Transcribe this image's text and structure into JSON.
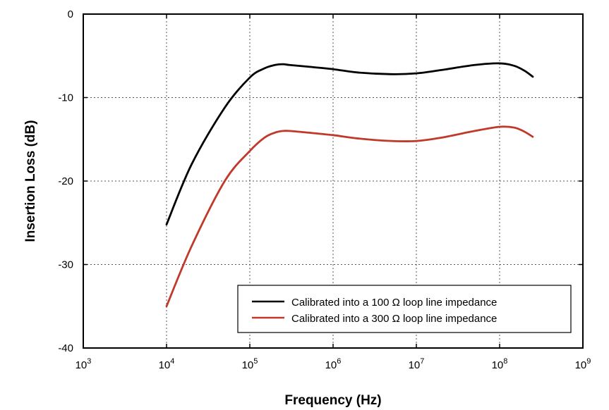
{
  "chart_data": {
    "type": "line",
    "title": "",
    "xlabel": "Frequency (Hz)",
    "ylabel": "Insertion Loss (dB)",
    "x_scale": "log",
    "xlim": [
      1000,
      1000000000
    ],
    "ylim": [
      -40,
      0
    ],
    "grid": true,
    "legend_placement": "bottom-right",
    "x_ticks": [
      {
        "base": "10",
        "exp": "3",
        "value": 1000
      },
      {
        "base": "10",
        "exp": "4",
        "value": 10000
      },
      {
        "base": "10",
        "exp": "5",
        "value": 100000
      },
      {
        "base": "10",
        "exp": "6",
        "value": 1000000
      },
      {
        "base": "10",
        "exp": "7",
        "value": 10000000
      },
      {
        "base": "10",
        "exp": "8",
        "value": 100000000
      },
      {
        "base": "10",
        "exp": "9",
        "value": 1000000000
      }
    ],
    "y_ticks": [
      {
        "label": "0",
        "value": 0
      },
      {
        "label": "-10",
        "value": -10
      },
      {
        "label": "-20",
        "value": -20
      },
      {
        "label": "-30",
        "value": -30
      },
      {
        "label": "-40",
        "value": -40
      }
    ],
    "series": [
      {
        "name": "Calibrated into a 100 Ω loop line impedance",
        "color": "#000000",
        "x": [
          10000,
          20000,
          50000,
          100000,
          150000,
          200000,
          250000,
          300000,
          500000,
          1000000,
          2000000,
          5000000,
          10000000,
          20000000,
          50000000,
          100000000,
          150000000,
          200000000,
          250000000
        ],
        "y": [
          -25.2,
          -18.0,
          -11.2,
          -7.6,
          -6.5,
          -6.1,
          -6.0,
          -6.1,
          -6.3,
          -6.6,
          -7.0,
          -7.2,
          -7.1,
          -6.7,
          -6.1,
          -5.9,
          -6.2,
          -6.8,
          -7.5
        ]
      },
      {
        "name": "Calibrated into a 300 Ω loop line impedance",
        "color": "#c0392b",
        "x": [
          10000,
          20000,
          50000,
          100000,
          150000,
          200000,
          250000,
          300000,
          500000,
          1000000,
          2000000,
          5000000,
          10000000,
          20000000,
          50000000,
          100000000,
          150000000,
          200000000,
          250000000
        ],
        "y": [
          -35.0,
          -27.8,
          -20.0,
          -16.4,
          -14.8,
          -14.2,
          -14.0,
          -14.0,
          -14.2,
          -14.5,
          -14.9,
          -15.2,
          -15.2,
          -14.8,
          -14.0,
          -13.5,
          -13.6,
          -14.1,
          -14.7
        ]
      }
    ]
  }
}
